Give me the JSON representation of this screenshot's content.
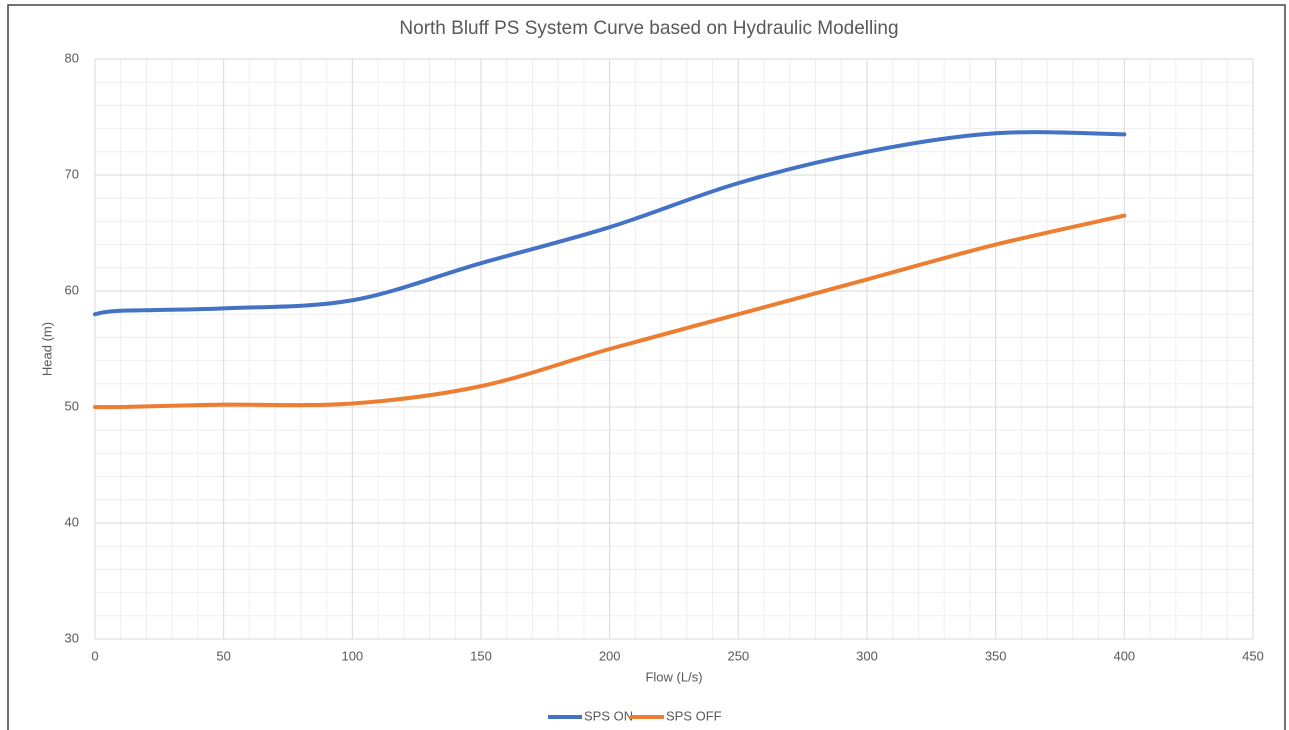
{
  "chart_data": {
    "type": "line",
    "title": "North Bluff PS System Curve based on Hydraulic Modelling",
    "xlabel": "Flow (L/s)",
    "ylabel": "Head (m)",
    "x": [
      0,
      10,
      50,
      100,
      150,
      200,
      250,
      300,
      350,
      400
    ],
    "series": [
      {
        "name": "SPS ON",
        "color": "#4472c4",
        "values": [
          58.0,
          58.3,
          58.5,
          59.2,
          62.4,
          65.5,
          69.3,
          72.0,
          73.6,
          73.5
        ]
      },
      {
        "name": "SPS OFF",
        "color": "#ed7d31",
        "values": [
          50.0,
          50.0,
          50.2,
          50.3,
          51.8,
          55.0,
          58.0,
          61.0,
          64.0,
          66.5
        ]
      }
    ],
    "xlim": [
      0,
      450
    ],
    "xticks": [
      0,
      50,
      100,
      150,
      200,
      250,
      300,
      350,
      400,
      450
    ],
    "ylim": [
      30,
      80
    ],
    "yticks": [
      30,
      40,
      50,
      60,
      70,
      80
    ],
    "grid": true,
    "smooth": true,
    "legend": "bottom"
  }
}
